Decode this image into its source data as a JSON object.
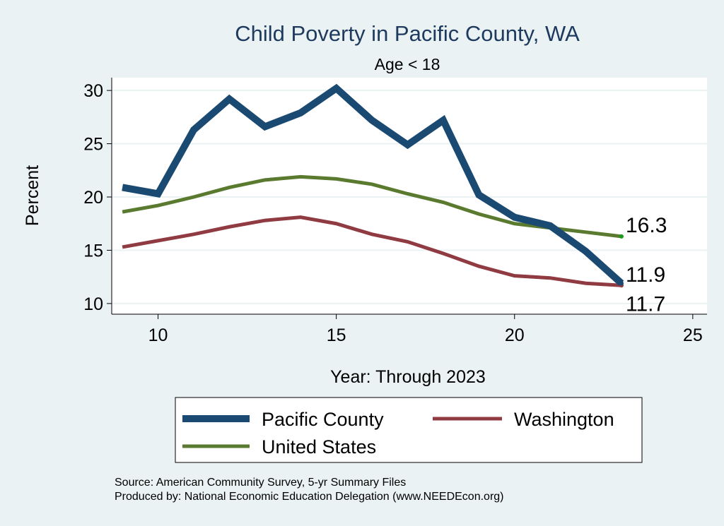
{
  "chart_data": {
    "type": "line",
    "title": "Child Poverty in Pacific County, WA",
    "subtitle": "Age < 18",
    "xlabel": "Year: Through 2023",
    "ylabel": "Percent",
    "xlim": [
      8.7,
      25.4
    ],
    "ylim": [
      9.0,
      31.2
    ],
    "xticks": [
      10,
      15,
      20,
      25
    ],
    "yticks": [
      10,
      15,
      20,
      25,
      30
    ],
    "grid": true,
    "legend_placement": "bottom",
    "x": [
      9,
      10,
      11,
      12,
      13,
      14,
      15,
      16,
      17,
      18,
      19,
      20,
      21,
      22,
      23
    ],
    "series": [
      {
        "name": "Pacific County",
        "color": "#1a4a72",
        "values": [
          20.9,
          20.3,
          26.3,
          29.2,
          26.6,
          27.9,
          30.2,
          27.2,
          24.9,
          27.2,
          20.2,
          18.1,
          17.3,
          14.9,
          11.9
        ],
        "end_label": "11.9"
      },
      {
        "name": "Washington",
        "color": "#903a42",
        "values": [
          15.3,
          15.9,
          16.5,
          17.2,
          17.8,
          18.1,
          17.5,
          16.5,
          15.8,
          14.7,
          13.5,
          12.6,
          12.4,
          11.9,
          11.7
        ],
        "end_label": "11.7"
      },
      {
        "name": "United States",
        "color": "#5a7a30",
        "values": [
          18.6,
          19.2,
          20.0,
          20.9,
          21.6,
          21.9,
          21.7,
          21.2,
          20.3,
          19.5,
          18.4,
          17.5,
          17.1,
          16.7,
          16.3
        ],
        "end_label": "16.3"
      }
    ]
  },
  "notes": {
    "source": "Source: American Community Survey, 5-yr Summary Files",
    "produced": "Produced by: National Economic Education Delegation (www.NEEDEcon.org)"
  }
}
